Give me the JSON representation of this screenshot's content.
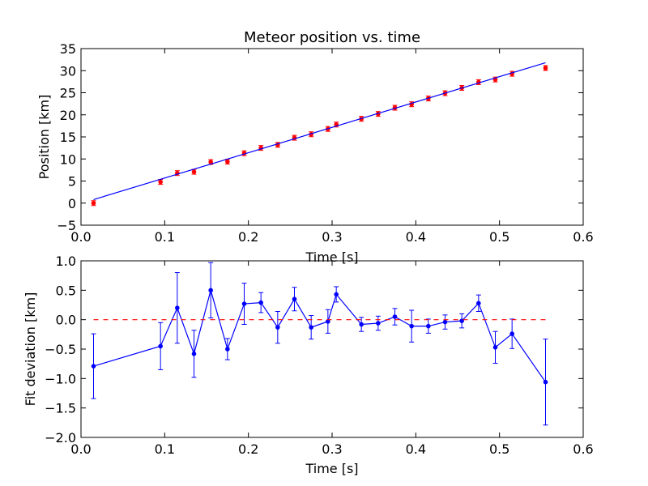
{
  "chart_data": [
    {
      "type": "scatter",
      "title": "Meteor position vs. time",
      "xlabel": "Time [s]",
      "ylabel": "Position [km]",
      "xlim": [
        0.0,
        0.6
      ],
      "ylim": [
        -5,
        35
      ],
      "xticks": [
        "0.0",
        "0.1",
        "0.2",
        "0.3",
        "0.4",
        "0.5",
        "0.6"
      ],
      "yticks": [
        "−5",
        "0",
        "5",
        "10",
        "15",
        "20",
        "25",
        "30",
        "35"
      ],
      "grid": false,
      "series": [
        {
          "kind": "errorbar-points",
          "color": "#ff0000",
          "x": [
            0.015,
            0.095,
            0.115,
            0.135,
            0.155,
            0.175,
            0.195,
            0.215,
            0.235,
            0.255,
            0.275,
            0.295,
            0.305,
            0.335,
            0.355,
            0.375,
            0.395,
            0.415,
            0.435,
            0.455,
            0.475,
            0.495,
            0.515,
            0.555
          ],
          "y": [
            0.0,
            4.8,
            6.8,
            7.1,
            9.3,
            9.4,
            11.3,
            12.5,
            13.2,
            14.8,
            15.6,
            16.8,
            17.8,
            19.1,
            20.2,
            21.6,
            22.4,
            23.7,
            24.9,
            26.1,
            27.4,
            28.0,
            29.3,
            30.6
          ]
        },
        {
          "kind": "fit-line",
          "color": "#0000ff",
          "x": [
            0.015,
            0.555
          ],
          "y": [
            0.8,
            31.8
          ]
        }
      ]
    },
    {
      "type": "line",
      "title": "",
      "xlabel": "Time [s]",
      "ylabel": "Fit deviation [km]",
      "xlim": [
        0.0,
        0.6
      ],
      "ylim": [
        -2.0,
        1.0
      ],
      "xticks": [
        "0.0",
        "0.1",
        "0.2",
        "0.3",
        "0.4",
        "0.5",
        "0.6"
      ],
      "yticks": [
        "−2.0",
        "−1.5",
        "−1.0",
        "−0.5",
        "0.0",
        "0.5",
        "1.0"
      ],
      "grid": false,
      "series": [
        {
          "kind": "errorbar-line",
          "color": "#0000ff",
          "x": [
            0.015,
            0.095,
            0.115,
            0.135,
            0.155,
            0.175,
            0.195,
            0.215,
            0.235,
            0.255,
            0.275,
            0.295,
            0.305,
            0.335,
            0.355,
            0.375,
            0.395,
            0.415,
            0.435,
            0.455,
            0.475,
            0.495,
            0.515,
            0.555
          ],
          "y": [
            -0.79,
            -0.45,
            0.2,
            -0.58,
            0.5,
            -0.5,
            0.27,
            0.29,
            -0.13,
            0.35,
            -0.13,
            -0.03,
            0.43,
            -0.08,
            -0.06,
            0.05,
            -0.11,
            -0.11,
            -0.04,
            -0.02,
            0.28,
            -0.47,
            -0.24,
            -1.06
          ],
          "yerr": [
            0.55,
            0.4,
            0.6,
            0.4,
            0.47,
            0.18,
            0.35,
            0.17,
            0.27,
            0.2,
            0.2,
            0.2,
            0.13,
            0.12,
            0.12,
            0.14,
            0.27,
            0.12,
            0.12,
            0.12,
            0.14,
            0.27,
            0.25,
            0.73
          ]
        },
        {
          "kind": "reference-line",
          "color": "#ff0000",
          "style": "dashed",
          "x": [
            0.015,
            0.555
          ],
          "y": [
            0.0,
            0.0
          ]
        }
      ]
    }
  ]
}
